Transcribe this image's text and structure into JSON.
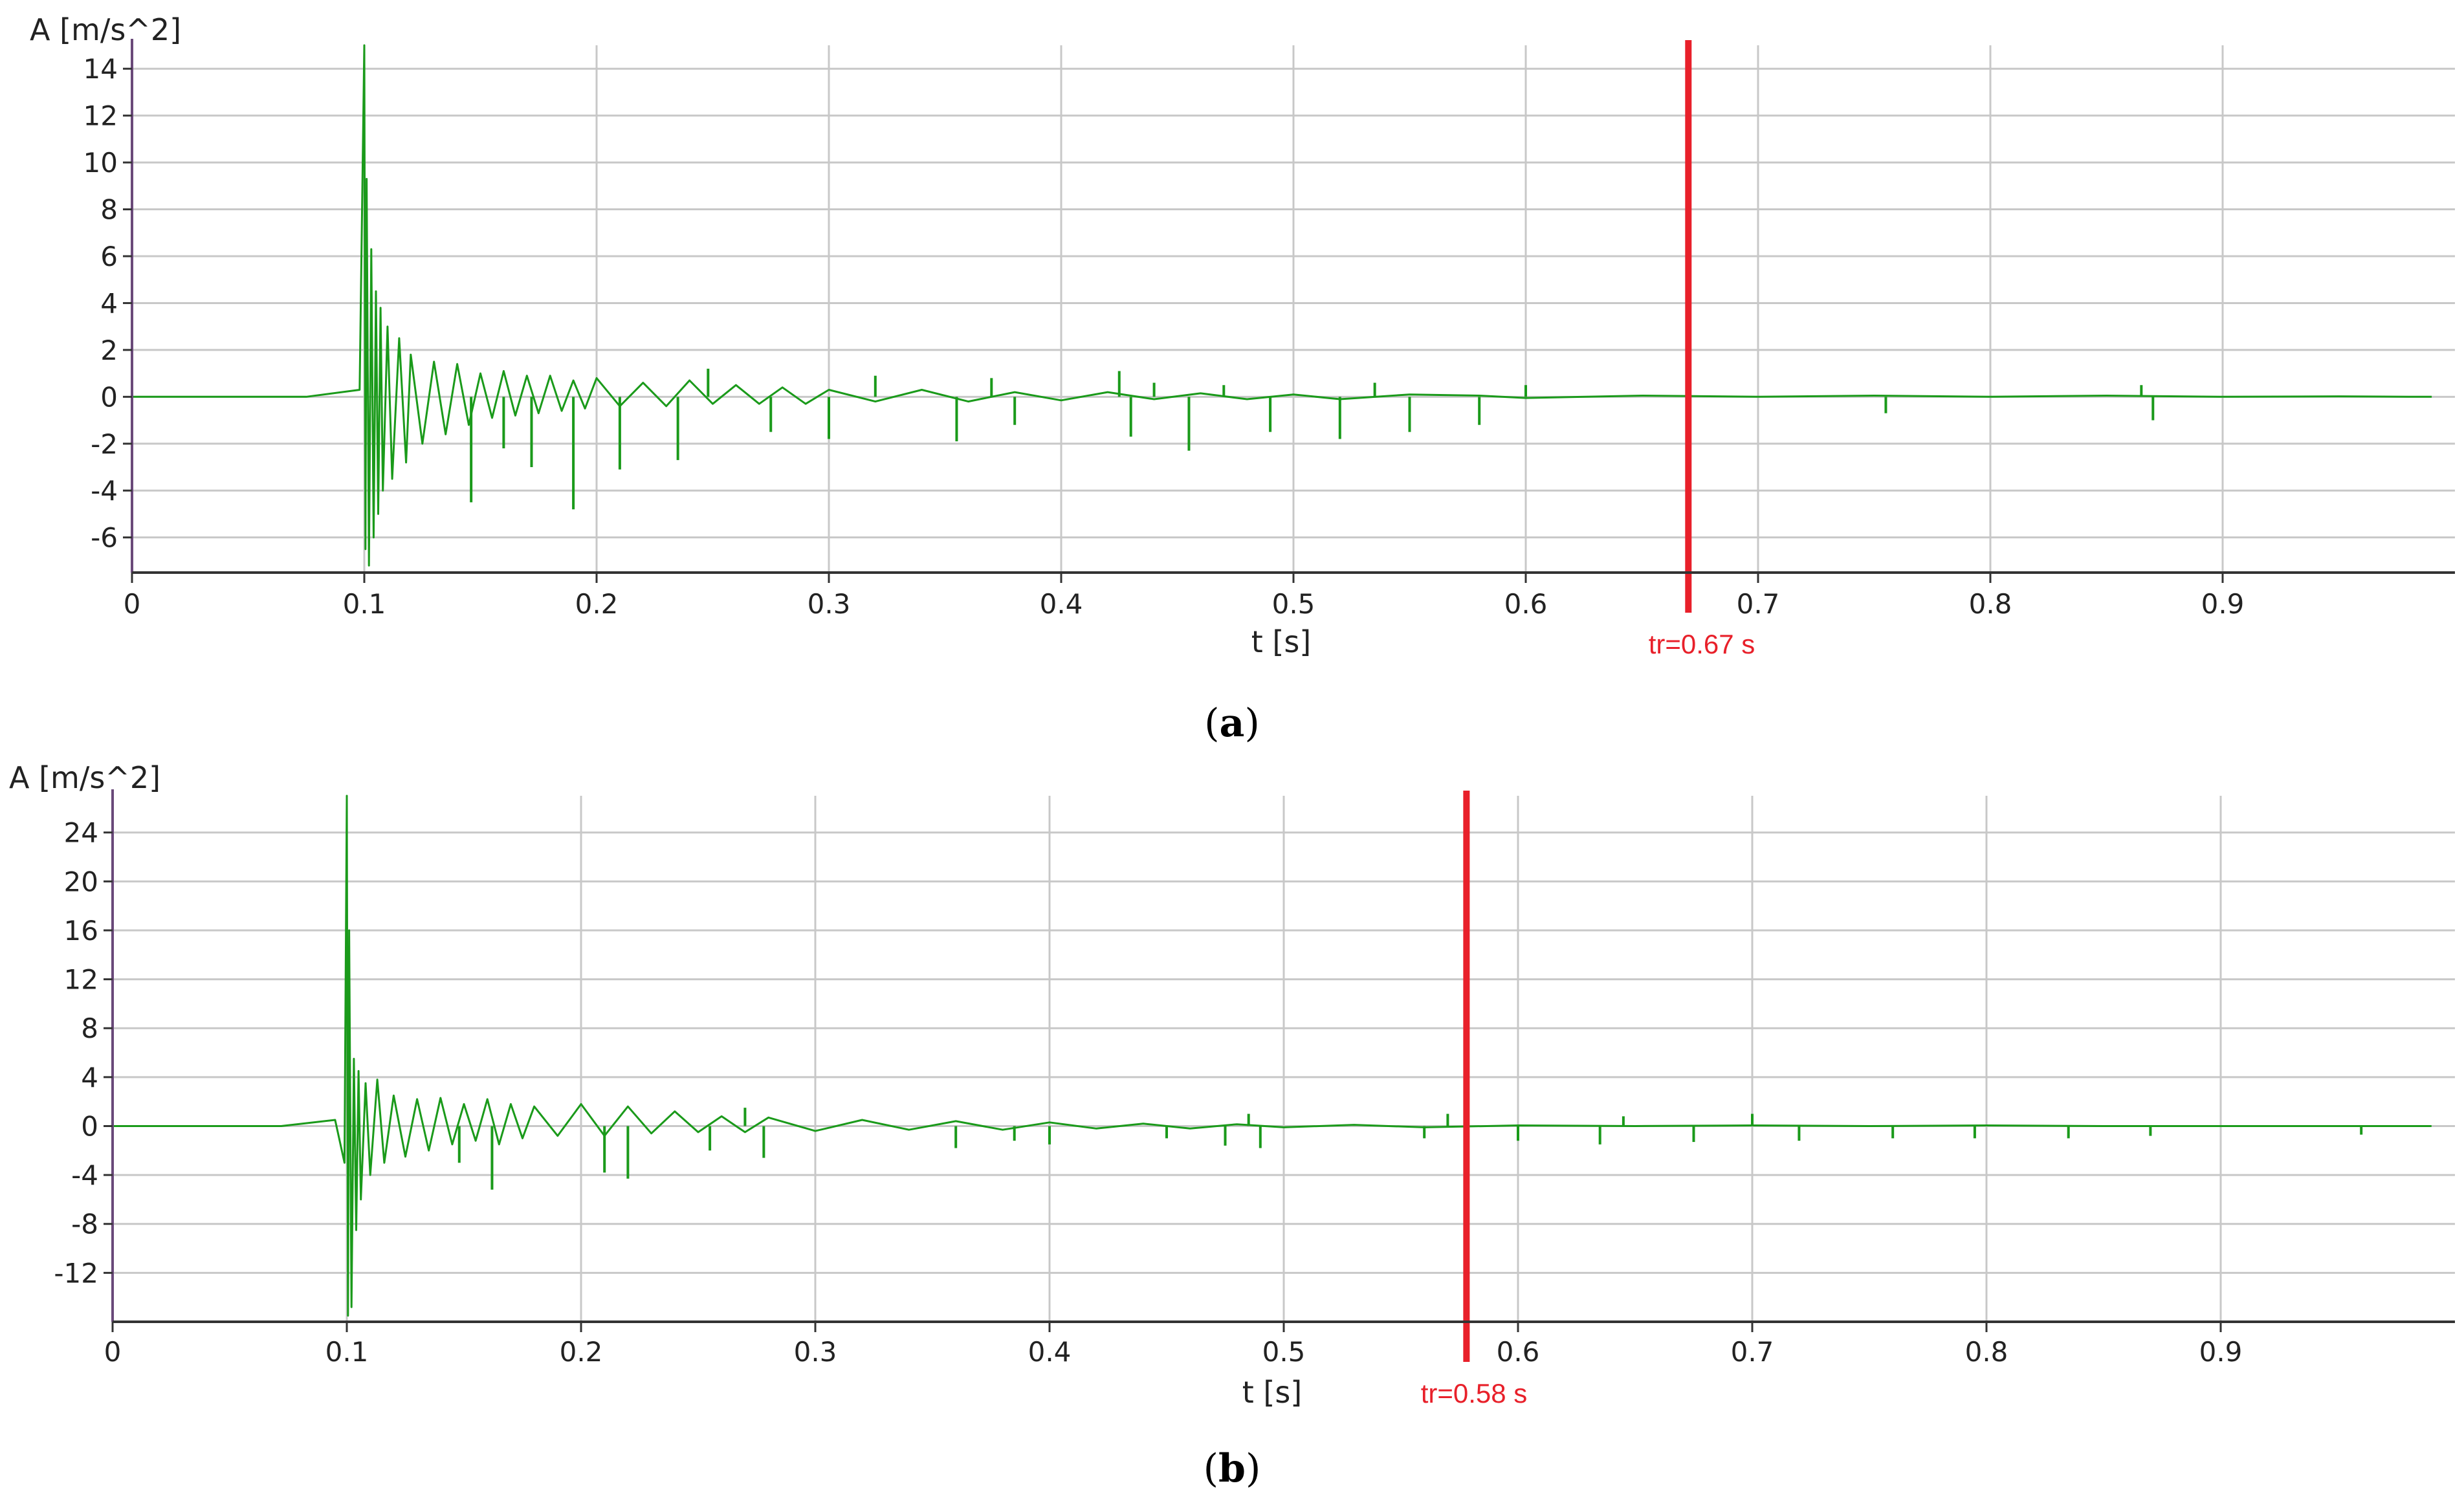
{
  "chart_data": [
    {
      "type": "line",
      "panel_caption": "a",
      "ylabel": "A [m/s^2]",
      "xlabel": "t [s]",
      "xlim": [
        0,
        1.0
      ],
      "ylim": [
        -7.5,
        15
      ],
      "xticks": [
        0,
        0.1,
        0.2,
        0.3,
        0.4,
        0.5,
        0.6,
        0.7,
        0.8,
        0.9
      ],
      "xtick_labels": [
        "0",
        "0.1",
        "0.2",
        "0.3",
        "0.4",
        "0.5",
        "0.6",
        "0.7",
        "0.8",
        "0.9"
      ],
      "yticks": [
        14,
        12,
        10,
        8,
        6,
        4,
        2,
        0,
        -2,
        -4,
        -6
      ],
      "ytick_labels": [
        "14",
        "12",
        "10",
        "8",
        "6",
        "4",
        "2",
        "0",
        "-2",
        "-4",
        "-6"
      ],
      "grid": true,
      "series": [
        {
          "color": "#1a9a1a",
          "x": [
            0.075,
            0.098,
            0.1,
            0.1005,
            0.101,
            0.102,
            0.103,
            0.104,
            0.105,
            0.106,
            0.107,
            0.108,
            0.11,
            0.112,
            0.115,
            0.118,
            0.12,
            0.125,
            0.13,
            0.135,
            0.14,
            0.145,
            0.15,
            0.155,
            0.16,
            0.165,
            0.17,
            0.175,
            0.18,
            0.185,
            0.19,
            0.195,
            0.2,
            0.21,
            0.22,
            0.23,
            0.24,
            0.25,
            0.26,
            0.27,
            0.28,
            0.29,
            0.3,
            0.32,
            0.34,
            0.36,
            0.38,
            0.4,
            0.42,
            0.44,
            0.46,
            0.48,
            0.5,
            0.52,
            0.55,
            0.58,
            0.6,
            0.65,
            0.7,
            0.75,
            0.8,
            0.85,
            0.9,
            0.95,
            0.98
          ],
          "y": [
            0,
            0.3,
            15,
            -6.5,
            9.3,
            -7.2,
            6.3,
            -6,
            4.5,
            -5,
            3.8,
            -4,
            3,
            -3.5,
            2.5,
            -2.8,
            1.8,
            -2,
            1.5,
            -1.6,
            1.4,
            -1.2,
            1.0,
            -0.9,
            1.1,
            -0.8,
            0.9,
            -0.7,
            0.9,
            -0.6,
            0.7,
            -0.5,
            0.8,
            -0.4,
            0.6,
            -0.4,
            0.7,
            -0.3,
            0.5,
            -0.3,
            0.4,
            -0.3,
            0.3,
            -0.2,
            0.3,
            -0.2,
            0.2,
            -0.15,
            0.2,
            -0.1,
            0.15,
            -0.1,
            0.1,
            -0.1,
            0.1,
            0.05,
            -0.05,
            0.05,
            0,
            0.05,
            0,
            0.05,
            0,
            0.02,
            0
          ]
        }
      ],
      "spikes": [
        {
          "x": 0.146,
          "y": -4.5
        },
        {
          "x": 0.16,
          "y": -2.2
        },
        {
          "x": 0.172,
          "y": -3.0
        },
        {
          "x": 0.19,
          "y": -4.8
        },
        {
          "x": 0.21,
          "y": -3.1
        },
        {
          "x": 0.235,
          "y": -2.7
        },
        {
          "x": 0.248,
          "y": 1.2
        },
        {
          "x": 0.275,
          "y": -1.5
        },
        {
          "x": 0.3,
          "y": -1.8
        },
        {
          "x": 0.32,
          "y": 0.9
        },
        {
          "x": 0.355,
          "y": -1.9
        },
        {
          "x": 0.37,
          "y": 0.8
        },
        {
          "x": 0.38,
          "y": -1.2
        },
        {
          "x": 0.425,
          "y": 1.1
        },
        {
          "x": 0.43,
          "y": -1.7
        },
        {
          "x": 0.44,
          "y": 0.6
        },
        {
          "x": 0.455,
          "y": -2.3
        },
        {
          "x": 0.47,
          "y": 0.5
        },
        {
          "x": 0.49,
          "y": -1.5
        },
        {
          "x": 0.52,
          "y": -1.8
        },
        {
          "x": 0.535,
          "y": 0.6
        },
        {
          "x": 0.55,
          "y": -1.5
        },
        {
          "x": 0.58,
          "y": -1.2
        },
        {
          "x": 0.6,
          "y": 0.5
        },
        {
          "x": 0.755,
          "y": -0.7
        },
        {
          "x": 0.865,
          "y": 0.5
        },
        {
          "x": 0.87,
          "y": -1.0
        }
      ],
      "marker": {
        "x": 0.67,
        "label": "tr=0.67 s",
        "color": "#e8202a"
      }
    },
    {
      "type": "line",
      "panel_caption": "b",
      "ylabel": "A [m/s^2]",
      "xlabel": "t [s]",
      "xlim": [
        0,
        1.0
      ],
      "ylim": [
        -16,
        27
      ],
      "xticks": [
        0,
        0.1,
        0.2,
        0.3,
        0.4,
        0.5,
        0.6,
        0.7,
        0.8,
        0.9
      ],
      "xtick_labels": [
        "0",
        "0.1",
        "0.2",
        "0.3",
        "0.4",
        "0.5",
        "0.6",
        "0.7",
        "0.8",
        "0.9"
      ],
      "yticks": [
        24,
        20,
        16,
        12,
        8,
        4,
        0,
        -4,
        -8,
        -12
      ],
      "ytick_labels": [
        "24",
        "20",
        "16",
        "12",
        "8",
        "4",
        "0",
        "-4",
        "-8",
        "-12"
      ],
      "grid": true,
      "series": [
        {
          "color": "#1a9a1a",
          "x": [
            0.072,
            0.095,
            0.099,
            0.1,
            0.1005,
            0.101,
            0.102,
            0.103,
            0.104,
            0.105,
            0.106,
            0.108,
            0.11,
            0.113,
            0.116,
            0.12,
            0.125,
            0.13,
            0.135,
            0.14,
            0.145,
            0.15,
            0.155,
            0.16,
            0.165,
            0.17,
            0.175,
            0.18,
            0.19,
            0.2,
            0.21,
            0.22,
            0.23,
            0.24,
            0.25,
            0.26,
            0.27,
            0.28,
            0.3,
            0.32,
            0.34,
            0.36,
            0.38,
            0.4,
            0.42,
            0.44,
            0.46,
            0.48,
            0.5,
            0.53,
            0.56,
            0.6,
            0.65,
            0.7,
            0.75,
            0.8,
            0.85,
            0.9,
            0.96
          ],
          "y": [
            0,
            0.5,
            -3,
            27,
            -15.5,
            16,
            -14.8,
            5.5,
            -8.5,
            4.5,
            -6,
            3.5,
            -4,
            3.8,
            -3,
            2.5,
            -2.5,
            2.2,
            -2,
            2.3,
            -1.5,
            1.8,
            -1.2,
            2.2,
            -1.5,
            1.8,
            -1.0,
            1.6,
            -0.8,
            1.8,
            -0.8,
            1.6,
            -0.6,
            1.2,
            -0.5,
            0.8,
            -0.5,
            0.7,
            -0.4,
            0.5,
            -0.3,
            0.4,
            -0.3,
            0.3,
            -0.2,
            0.2,
            -0.2,
            0.15,
            -0.1,
            0.1,
            -0.1,
            0.05,
            0,
            0.05,
            0,
            0.05,
            0,
            0,
            0
          ]
        }
      ],
      "spikes": [
        {
          "x": 0.148,
          "y": -3.0
        },
        {
          "x": 0.162,
          "y": -5.2
        },
        {
          "x": 0.21,
          "y": -3.8
        },
        {
          "x": 0.22,
          "y": -4.3
        },
        {
          "x": 0.255,
          "y": -2.0
        },
        {
          "x": 0.27,
          "y": 1.5
        },
        {
          "x": 0.278,
          "y": -2.6
        },
        {
          "x": 0.36,
          "y": -1.8
        },
        {
          "x": 0.385,
          "y": -1.2
        },
        {
          "x": 0.4,
          "y": -1.5
        },
        {
          "x": 0.45,
          "y": -1.0
        },
        {
          "x": 0.475,
          "y": -1.6
        },
        {
          "x": 0.485,
          "y": 1.0
        },
        {
          "x": 0.49,
          "y": -1.8
        },
        {
          "x": 0.56,
          "y": -1.0
        },
        {
          "x": 0.57,
          "y": 1.0
        },
        {
          "x": 0.6,
          "y": -1.2
        },
        {
          "x": 0.635,
          "y": -1.5
        },
        {
          "x": 0.645,
          "y": 0.8
        },
        {
          "x": 0.675,
          "y": -1.3
        },
        {
          "x": 0.7,
          "y": 1.0
        },
        {
          "x": 0.72,
          "y": -1.2
        },
        {
          "x": 0.76,
          "y": -1.0
        },
        {
          "x": 0.795,
          "y": -1.0
        },
        {
          "x": 0.835,
          "y": -1.0
        },
        {
          "x": 0.87,
          "y": -0.8
        },
        {
          "x": 0.96,
          "y": -0.7
        }
      ],
      "marker": {
        "x": 0.578,
        "label": "tr=0.58 s",
        "color": "#e8202a"
      }
    }
  ],
  "panels": [
    {
      "ylabel": "A [m/s^2]",
      "xlabel": "t [s]",
      "marker_label": "tr=0.67 s",
      "caption_open": "(",
      "caption_letter": "a",
      "caption_close": ")"
    },
    {
      "ylabel": "A [m/s^2]",
      "xlabel": "t [s]",
      "marker_label": "tr=0.58 s",
      "caption_open": "(",
      "caption_letter": "b",
      "caption_close": ")"
    }
  ]
}
